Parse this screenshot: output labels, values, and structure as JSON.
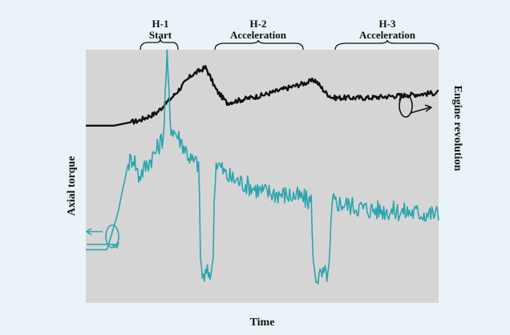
{
  "chart_data": {
    "type": "line",
    "xlabel": "Time",
    "ylabel_left": "Axial torque",
    "ylabel_right": "Engine revolution",
    "grid": false,
    "phases": [
      {
        "code": "H-1",
        "name": "Start",
        "x_start": 0.155,
        "x_end": 0.255
      },
      {
        "code": "H-2",
        "name": "Acceleration",
        "x_start": 0.365,
        "x_end": 0.62
      },
      {
        "code": "H-3",
        "name": "Acceleration",
        "x_start": 0.72,
        "x_end": 0.98
      }
    ],
    "series": [
      {
        "color": "#111111",
        "points": [
          [
            0,
            0.7
          ],
          [
            0.08,
            0.7
          ],
          [
            0.15,
            0.72
          ],
          [
            0.2,
            0.75
          ],
          [
            0.25,
            0.82
          ],
          [
            0.3,
            0.9
          ],
          [
            0.34,
            0.93
          ],
          [
            0.37,
            0.84
          ],
          [
            0.4,
            0.79
          ],
          [
            0.5,
            0.82
          ],
          [
            0.6,
            0.86
          ],
          [
            0.65,
            0.88
          ],
          [
            0.68,
            0.83
          ],
          [
            0.7,
            0.81
          ],
          [
            0.8,
            0.81
          ],
          [
            0.9,
            0.82
          ],
          [
            1.0,
            0.83
          ]
        ],
        "noise": 0.01
      },
      {
        "color": "#2aa5ad",
        "points": [
          [
            0,
            0.21
          ],
          [
            0.06,
            0.21
          ],
          [
            0.09,
            0.35
          ],
          [
            0.12,
            0.55
          ],
          [
            0.135,
            0.58
          ],
          [
            0.15,
            0.5
          ],
          [
            0.17,
            0.54
          ],
          [
            0.2,
            0.6
          ],
          [
            0.22,
            0.66
          ],
          [
            0.23,
            0.98
          ],
          [
            0.24,
            0.7
          ],
          [
            0.27,
            0.64
          ],
          [
            0.3,
            0.56
          ],
          [
            0.32,
            0.55
          ],
          [
            0.325,
            0.19
          ],
          [
            0.33,
            0.1
          ],
          [
            0.36,
            0.13
          ],
          [
            0.365,
            0.47
          ],
          [
            0.37,
            0.56
          ],
          [
            0.4,
            0.5
          ],
          [
            0.5,
            0.44
          ],
          [
            0.6,
            0.42
          ],
          [
            0.64,
            0.4
          ],
          [
            0.645,
            0.13
          ],
          [
            0.655,
            0.1
          ],
          [
            0.69,
            0.12
          ],
          [
            0.695,
            0.32
          ],
          [
            0.7,
            0.4
          ],
          [
            0.8,
            0.37
          ],
          [
            0.9,
            0.36
          ],
          [
            1.0,
            0.35
          ]
        ],
        "noise": 0.04
      }
    ]
  }
}
